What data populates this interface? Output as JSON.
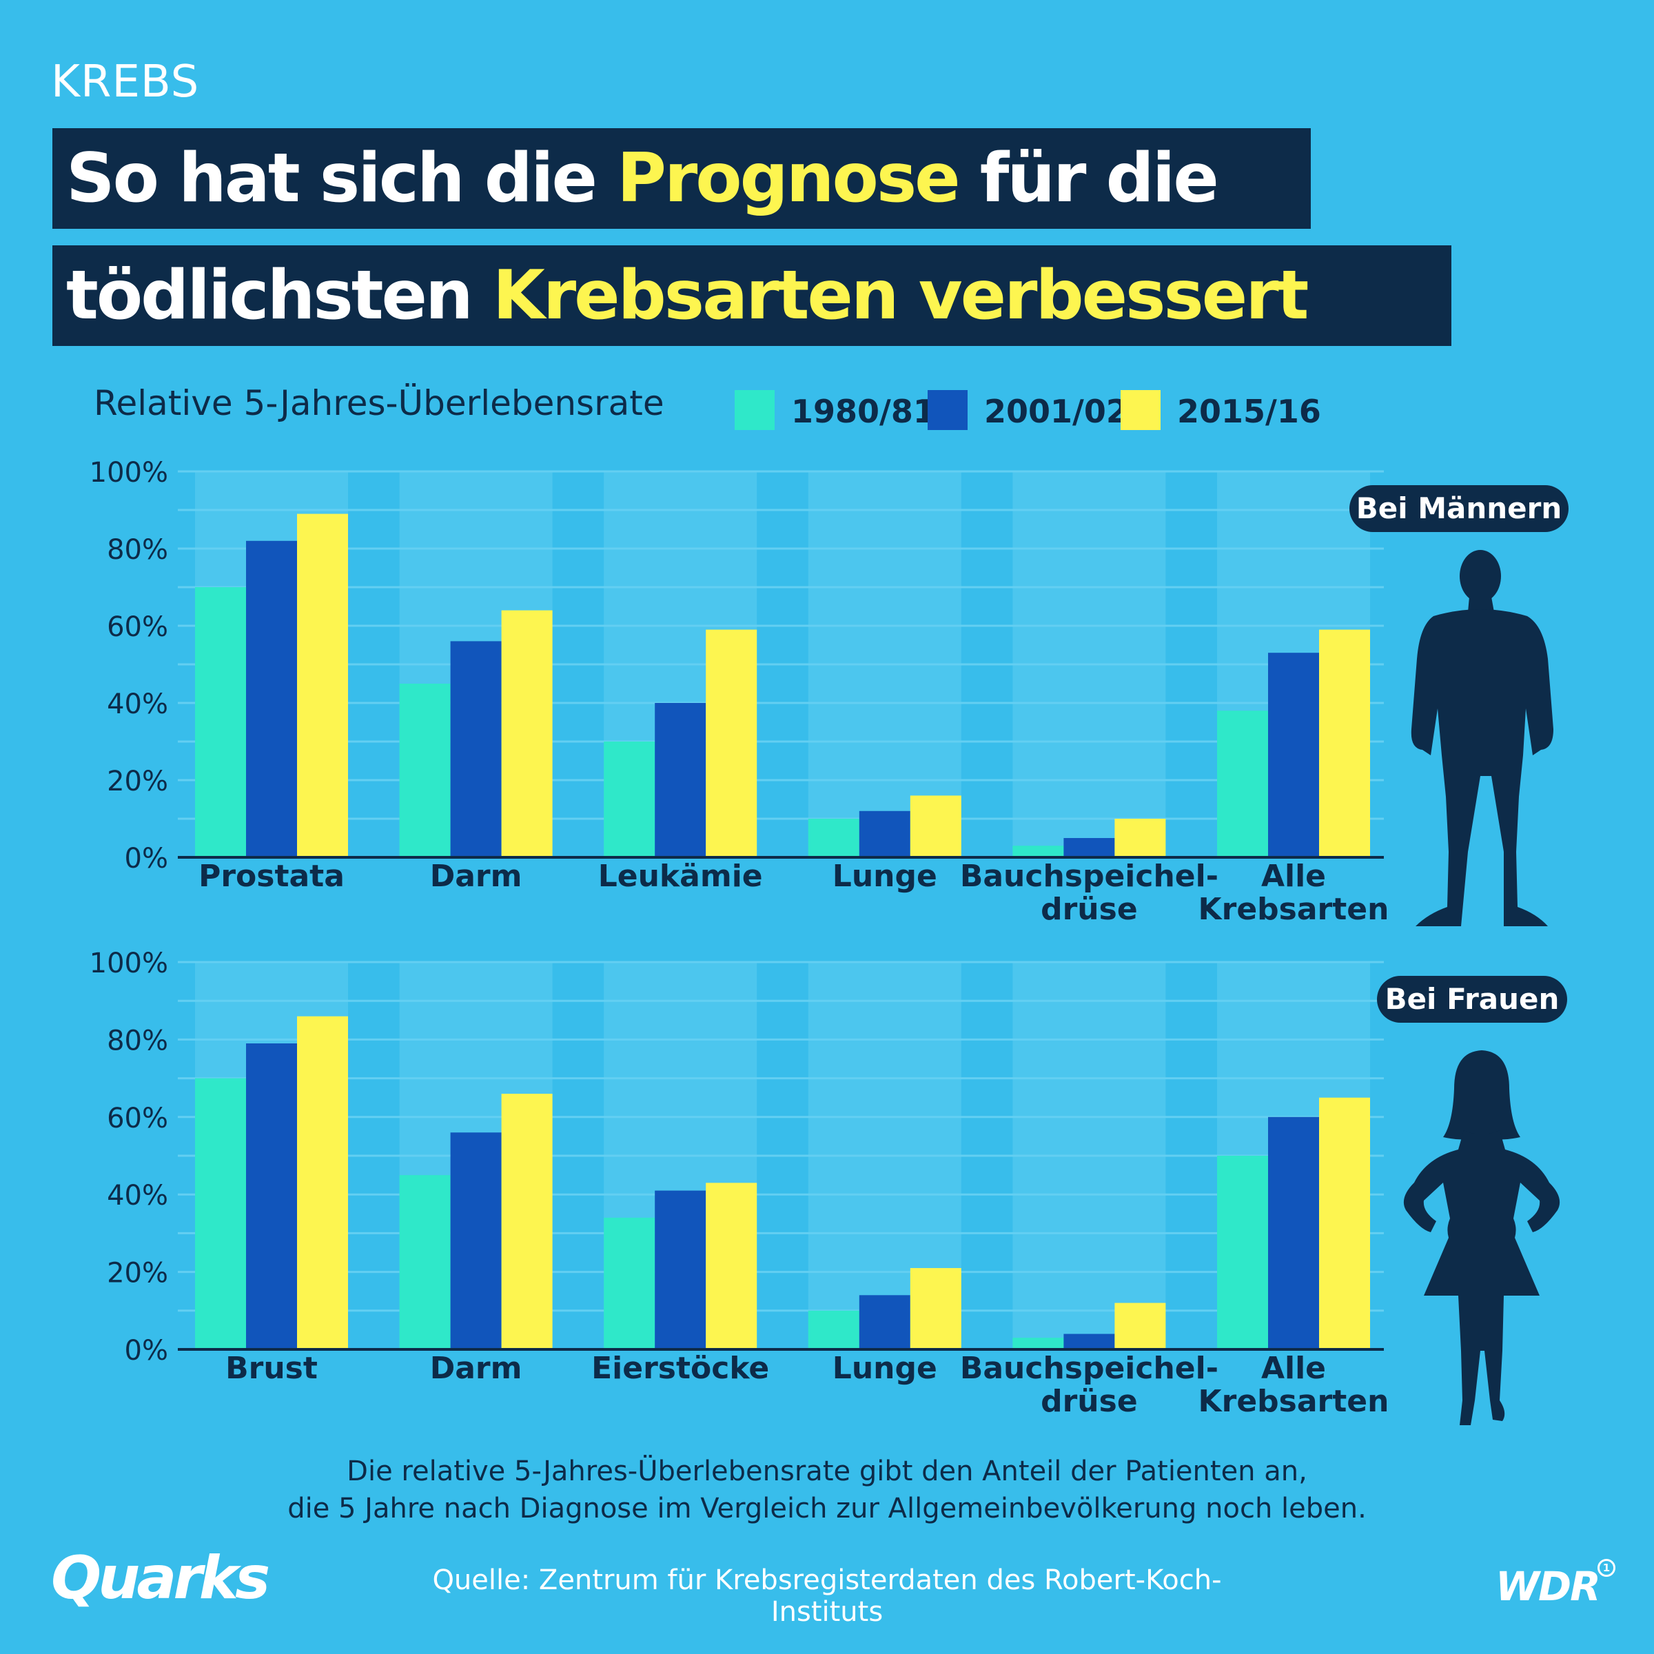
{
  "kicker": "KREBS",
  "title": {
    "line1_pre": "So hat sich die ",
    "line1_highlight": "Prognose",
    "line1_post": " für die",
    "line2_pre": "tödlichsten ",
    "line2_highlight": "Krebsarten verbessert"
  },
  "colors": {
    "background": "#38bdeb",
    "column_band": "#4cc6ee",
    "dark": "#0d2b49",
    "highlight": "#fdf550",
    "series_1980": "#2fe8c9",
    "series_2001": "#1155bb",
    "series_2015": "#fdf550"
  },
  "chart_data": [
    {
      "type": "bar",
      "group": "Bei Männern",
      "ylabel": "Relative 5-Jahres-Überlebensrate",
      "ylim": [
        0,
        100
      ],
      "yticks": [
        "0%",
        "20%",
        "40%",
        "60%",
        "80%",
        "100%"
      ],
      "categories": [
        {
          "label_lines": [
            "Prostata"
          ]
        },
        {
          "label_lines": [
            "Darm"
          ]
        },
        {
          "label_lines": [
            "Leukämie"
          ]
        },
        {
          "label_lines": [
            "Lunge"
          ]
        },
        {
          "label_lines": [
            "Bauchspeichel-",
            "drüse"
          ]
        },
        {
          "label_lines": [
            "Alle",
            "Krebsarten"
          ]
        }
      ],
      "series": [
        {
          "name": "1980/81",
          "values": [
            70,
            45,
            30,
            10,
            3,
            38
          ]
        },
        {
          "name": "2001/02",
          "values": [
            82,
            56,
            40,
            12,
            5,
            53
          ]
        },
        {
          "name": "2015/16",
          "values": [
            89,
            64,
            59,
            16,
            10,
            59
          ]
        }
      ],
      "legend": "top",
      "grid": true
    },
    {
      "type": "bar",
      "group": "Bei Frauen",
      "ylabel": "Relative 5-Jahres-Überlebensrate",
      "ylim": [
        0,
        100
      ],
      "yticks": [
        "0%",
        "20%",
        "40%",
        "60%",
        "80%",
        "100%"
      ],
      "categories": [
        {
          "label_lines": [
            "Brust"
          ]
        },
        {
          "label_lines": [
            "Darm"
          ]
        },
        {
          "label_lines": [
            "Eierstöcke"
          ]
        },
        {
          "label_lines": [
            "Lunge"
          ]
        },
        {
          "label_lines": [
            "Bauchspeichel-",
            "drüse"
          ]
        },
        {
          "label_lines": [
            "Alle",
            "Krebsarten"
          ]
        }
      ],
      "series": [
        {
          "name": "1980/81",
          "values": [
            70,
            45,
            34,
            10,
            3,
            50
          ]
        },
        {
          "name": "2001/02",
          "values": [
            79,
            56,
            41,
            14,
            4,
            60
          ]
        },
        {
          "name": "2015/16",
          "values": [
            86,
            66,
            43,
            21,
            12,
            65
          ]
        }
      ],
      "legend": "top",
      "grid": true
    }
  ],
  "badges": {
    "men": "Bei Männern",
    "women": "Bei Frauen"
  },
  "footnote": {
    "line1": "Die relative 5-Jahres-Überlebensrate gibt den Anteil der Patienten an,",
    "line2": "die 5 Jahre nach Diagnose im Vergleich zur Allgemeinbevölkerung noch leben."
  },
  "source": "Quelle: Zentrum für Krebsregisterdaten des Robert-Koch-Instituts",
  "logos": {
    "left": "Quarks",
    "right": "WDR",
    "right_mark": "1"
  }
}
